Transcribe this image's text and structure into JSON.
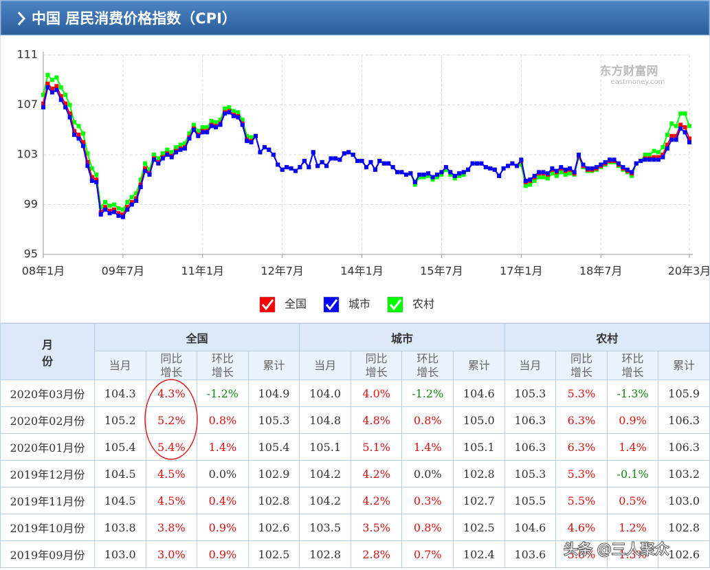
{
  "header": {
    "title": "中国 居民消费价格指数（CPI）"
  },
  "chart_data": {
    "type": "line",
    "watermark": [
      "东方财富网",
      "eastmoney.com"
    ],
    "categories": [
      "08年1月",
      null,
      null,
      null,
      null,
      null,
      null,
      null,
      null,
      null,
      null,
      null,
      null,
      null,
      null,
      null,
      null,
      null,
      "09年7月",
      null,
      null,
      null,
      null,
      null,
      null,
      null,
      null,
      null,
      null,
      null,
      null,
      null,
      null,
      null,
      null,
      null,
      "11年1月",
      null,
      null,
      null,
      null,
      null,
      null,
      null,
      null,
      null,
      null,
      null,
      null,
      null,
      null,
      null,
      null,
      null,
      "12年7月",
      null,
      null,
      null,
      null,
      null,
      null,
      null,
      null,
      null,
      null,
      null,
      null,
      null,
      null,
      null,
      null,
      null,
      "14年1月",
      null,
      null,
      null,
      null,
      null,
      null,
      null,
      null,
      null,
      null,
      null,
      null,
      null,
      null,
      null,
      null,
      null,
      "15年7月",
      null,
      null,
      null,
      null,
      null,
      null,
      null,
      null,
      null,
      null,
      null,
      null,
      null,
      null,
      null,
      null,
      null,
      "17年1月",
      null,
      null,
      null,
      null,
      null,
      null,
      null,
      null,
      null,
      null,
      null,
      null,
      null,
      null,
      null,
      null,
      null,
      "18年7月",
      null,
      null,
      null,
      null,
      null,
      null,
      null,
      null,
      null,
      null,
      null,
      null,
      null,
      null,
      null,
      null,
      null,
      null,
      null,
      "20年3月"
    ],
    "ylim": [
      95,
      111
    ],
    "yticks": [
      95,
      99,
      103,
      107,
      111
    ],
    "grid": true,
    "series": [
      {
        "name": "全国",
        "color": "#ff0000",
        "values": [
          107.1,
          108.7,
          108.3,
          108.5,
          107.7,
          107.1,
          106.3,
          104.9,
          104.6,
          104.0,
          102.4,
          101.2,
          101.0,
          98.4,
          98.8,
          98.5,
          98.6,
          98.3,
          98.2,
          98.8,
          99.2,
          99.5,
          100.6,
          101.9,
          101.5,
          102.7,
          102.4,
          102.8,
          103.1,
          102.9,
          103.3,
          103.5,
          103.6,
          104.4,
          105.1,
          104.6,
          104.9,
          104.9,
          105.4,
          105.3,
          105.5,
          106.4,
          106.5,
          106.2,
          106.1,
          105.5,
          104.2,
          104.1,
          104.5,
          103.2,
          103.6,
          103.4,
          103.0,
          102.2,
          101.8,
          102.0,
          101.9,
          101.7,
          102.0,
          102.5,
          102.0,
          103.2,
          102.1,
          102.4,
          102.1,
          102.7,
          102.7,
          102.6,
          103.1,
          103.2,
          103.0,
          102.5,
          102.5,
          102.0,
          102.4,
          101.8,
          102.5,
          102.3,
          102.3,
          102.0,
          101.6,
          101.6,
          101.4,
          101.5,
          100.8,
          101.4,
          101.4,
          101.5,
          101.2,
          101.4,
          101.6,
          102.0,
          101.6,
          101.3,
          101.5,
          101.6,
          101.8,
          102.3,
          102.3,
          102.3,
          102.0,
          101.9,
          101.8,
          101.3,
          101.9,
          102.1,
          102.3,
          102.1,
          102.5,
          100.8,
          100.9,
          101.2,
          101.5,
          101.5,
          101.4,
          101.8,
          101.6,
          101.9,
          101.7,
          101.8,
          101.5,
          102.9,
          102.1,
          101.8,
          101.8,
          101.9,
          102.1,
          102.3,
          102.5,
          102.5,
          102.2,
          101.9,
          101.7,
          101.5,
          102.3,
          102.5,
          102.7,
          102.7,
          102.8,
          102.8,
          103.0,
          103.8,
          104.5,
          104.5,
          105.4,
          105.2,
          104.3
        ]
      },
      {
        "name": "城市",
        "color": "#0000ff",
        "values": [
          106.8,
          108.4,
          108.0,
          108.2,
          107.4,
          106.8,
          106.0,
          104.6,
          104.3,
          103.7,
          102.1,
          100.9,
          100.8,
          98.2,
          98.6,
          98.3,
          98.4,
          98.1,
          98.0,
          98.6,
          99.0,
          99.3,
          100.4,
          101.7,
          101.4,
          102.6,
          102.3,
          102.7,
          103.0,
          102.8,
          103.2,
          103.4,
          103.5,
          104.3,
          105.0,
          104.5,
          104.8,
          104.8,
          105.3,
          105.2,
          105.4,
          106.3,
          106.4,
          106.1,
          106.0,
          105.4,
          104.1,
          104.0,
          104.5,
          103.2,
          103.6,
          103.4,
          103.0,
          102.2,
          101.8,
          102.0,
          101.9,
          101.7,
          102.0,
          102.5,
          102.0,
          103.2,
          102.1,
          102.4,
          102.1,
          102.7,
          102.7,
          102.6,
          103.1,
          103.2,
          103.0,
          102.5,
          102.5,
          102.0,
          102.4,
          101.8,
          102.5,
          102.3,
          102.3,
          102.0,
          101.6,
          101.6,
          101.4,
          101.5,
          100.8,
          101.4,
          101.4,
          101.5,
          101.2,
          101.4,
          101.6,
          102.0,
          101.6,
          101.3,
          101.5,
          101.6,
          101.8,
          102.3,
          102.3,
          102.3,
          102.0,
          101.9,
          101.8,
          101.3,
          101.9,
          102.1,
          102.3,
          102.1,
          102.6,
          100.9,
          101.0,
          101.3,
          101.6,
          101.6,
          101.5,
          101.9,
          101.7,
          102.0,
          101.8,
          101.9,
          101.6,
          103.0,
          102.2,
          101.9,
          101.9,
          102.0,
          102.2,
          102.4,
          102.6,
          102.6,
          102.3,
          102.0,
          101.8,
          101.6,
          102.3,
          102.5,
          102.6,
          102.6,
          102.6,
          102.6,
          102.8,
          103.5,
          104.2,
          104.2,
          105.1,
          104.8,
          104.0
        ]
      },
      {
        "name": "农村",
        "color": "#00ff00",
        "values": [
          107.8,
          109.4,
          109.0,
          109.2,
          108.4,
          107.8,
          107.0,
          105.6,
          105.3,
          104.7,
          103.1,
          101.9,
          101.4,
          98.8,
          99.2,
          98.9,
          99.0,
          98.7,
          98.6,
          99.2,
          99.6,
          99.9,
          101.0,
          102.3,
          101.8,
          103.0,
          102.7,
          103.1,
          103.4,
          103.2,
          103.6,
          103.8,
          103.9,
          104.7,
          105.4,
          104.9,
          105.2,
          105.2,
          105.7,
          105.6,
          105.8,
          106.7,
          106.8,
          106.5,
          106.4,
          105.8,
          104.5,
          104.4,
          104.5,
          103.2,
          103.6,
          103.4,
          103.0,
          102.2,
          101.8,
          102.0,
          101.9,
          101.7,
          102.0,
          102.5,
          102.0,
          103.2,
          102.1,
          102.4,
          102.1,
          102.7,
          102.7,
          102.6,
          103.1,
          103.2,
          103.0,
          102.5,
          102.5,
          102.0,
          102.4,
          101.8,
          102.5,
          102.3,
          102.3,
          102.0,
          101.6,
          101.6,
          101.4,
          101.5,
          100.6,
          101.2,
          101.2,
          101.3,
          101.0,
          101.2,
          101.4,
          101.8,
          101.4,
          101.1,
          101.3,
          101.4,
          101.8,
          102.3,
          102.3,
          102.3,
          102.0,
          101.9,
          101.8,
          101.3,
          101.9,
          102.1,
          102.3,
          102.1,
          102.2,
          100.5,
          100.6,
          100.9,
          101.2,
          101.2,
          101.1,
          101.5,
          101.3,
          101.6,
          101.4,
          101.5,
          101.4,
          102.8,
          102.0,
          101.7,
          101.7,
          101.8,
          102.0,
          102.2,
          102.4,
          102.4,
          102.1,
          101.8,
          101.6,
          101.3,
          102.3,
          102.5,
          103.0,
          103.0,
          103.3,
          103.2,
          103.6,
          104.6,
          105.5,
          105.3,
          106.3,
          106.3,
          105.3
        ]
      }
    ]
  },
  "table": {
    "month_header": "月份",
    "groups": [
      "全国",
      "城市",
      "农村"
    ],
    "columns": [
      "同比增长",
      "环比增长"
    ],
    "column_names": [
      "当月",
      "同比增长",
      "环比增长",
      "累计"
    ],
    "rows": [
      [
        "2020年03月份",
        "104.3",
        "4.3%",
        "-1.2%",
        "104.9",
        "104.0",
        "4.0%",
        "-1.2%",
        "104.6",
        "105.3",
        "5.3%",
        "-1.3%",
        "105.9"
      ],
      [
        "2020年02月份",
        "105.2",
        "5.2%",
        "0.8%",
        "105.3",
        "104.8",
        "4.8%",
        "0.8%",
        "105.0",
        "106.3",
        "6.3%",
        "0.9%",
        "106.3"
      ],
      [
        "2020年01月份",
        "105.4",
        "5.4%",
        "1.4%",
        "105.4",
        "105.1",
        "5.1%",
        "1.4%",
        "105.1",
        "106.3",
        "6.3%",
        "1.4%",
        "106.3"
      ],
      [
        "2019年12月份",
        "104.5",
        "4.5%",
        "0.0%",
        "102.9",
        "104.2",
        "4.2%",
        "0.0%",
        "102.8",
        "105.3",
        "5.3%",
        "-0.1%",
        "103.2"
      ],
      [
        "2019年11月份",
        "104.5",
        "4.5%",
        "0.4%",
        "102.8",
        "104.2",
        "4.2%",
        "0.3%",
        "102.7",
        "105.5",
        "5.5%",
        "0.5%",
        "103.0"
      ],
      [
        "2019年10月份",
        "103.8",
        "3.8%",
        "0.9%",
        "102.6",
        "103.5",
        "3.5%",
        "0.8%",
        "102.5",
        "104.6",
        "4.6%",
        "1.2%",
        "102.8"
      ],
      [
        "2019年09月份",
        "103.0",
        "3.0%",
        "0.9%",
        "102.5",
        "102.8",
        "2.8%",
        "0.7%",
        "102.4",
        "103.6",
        "3.6%",
        "1.3%",
        "102.6"
      ]
    ]
  },
  "overlay": "头条 @三人聚众"
}
